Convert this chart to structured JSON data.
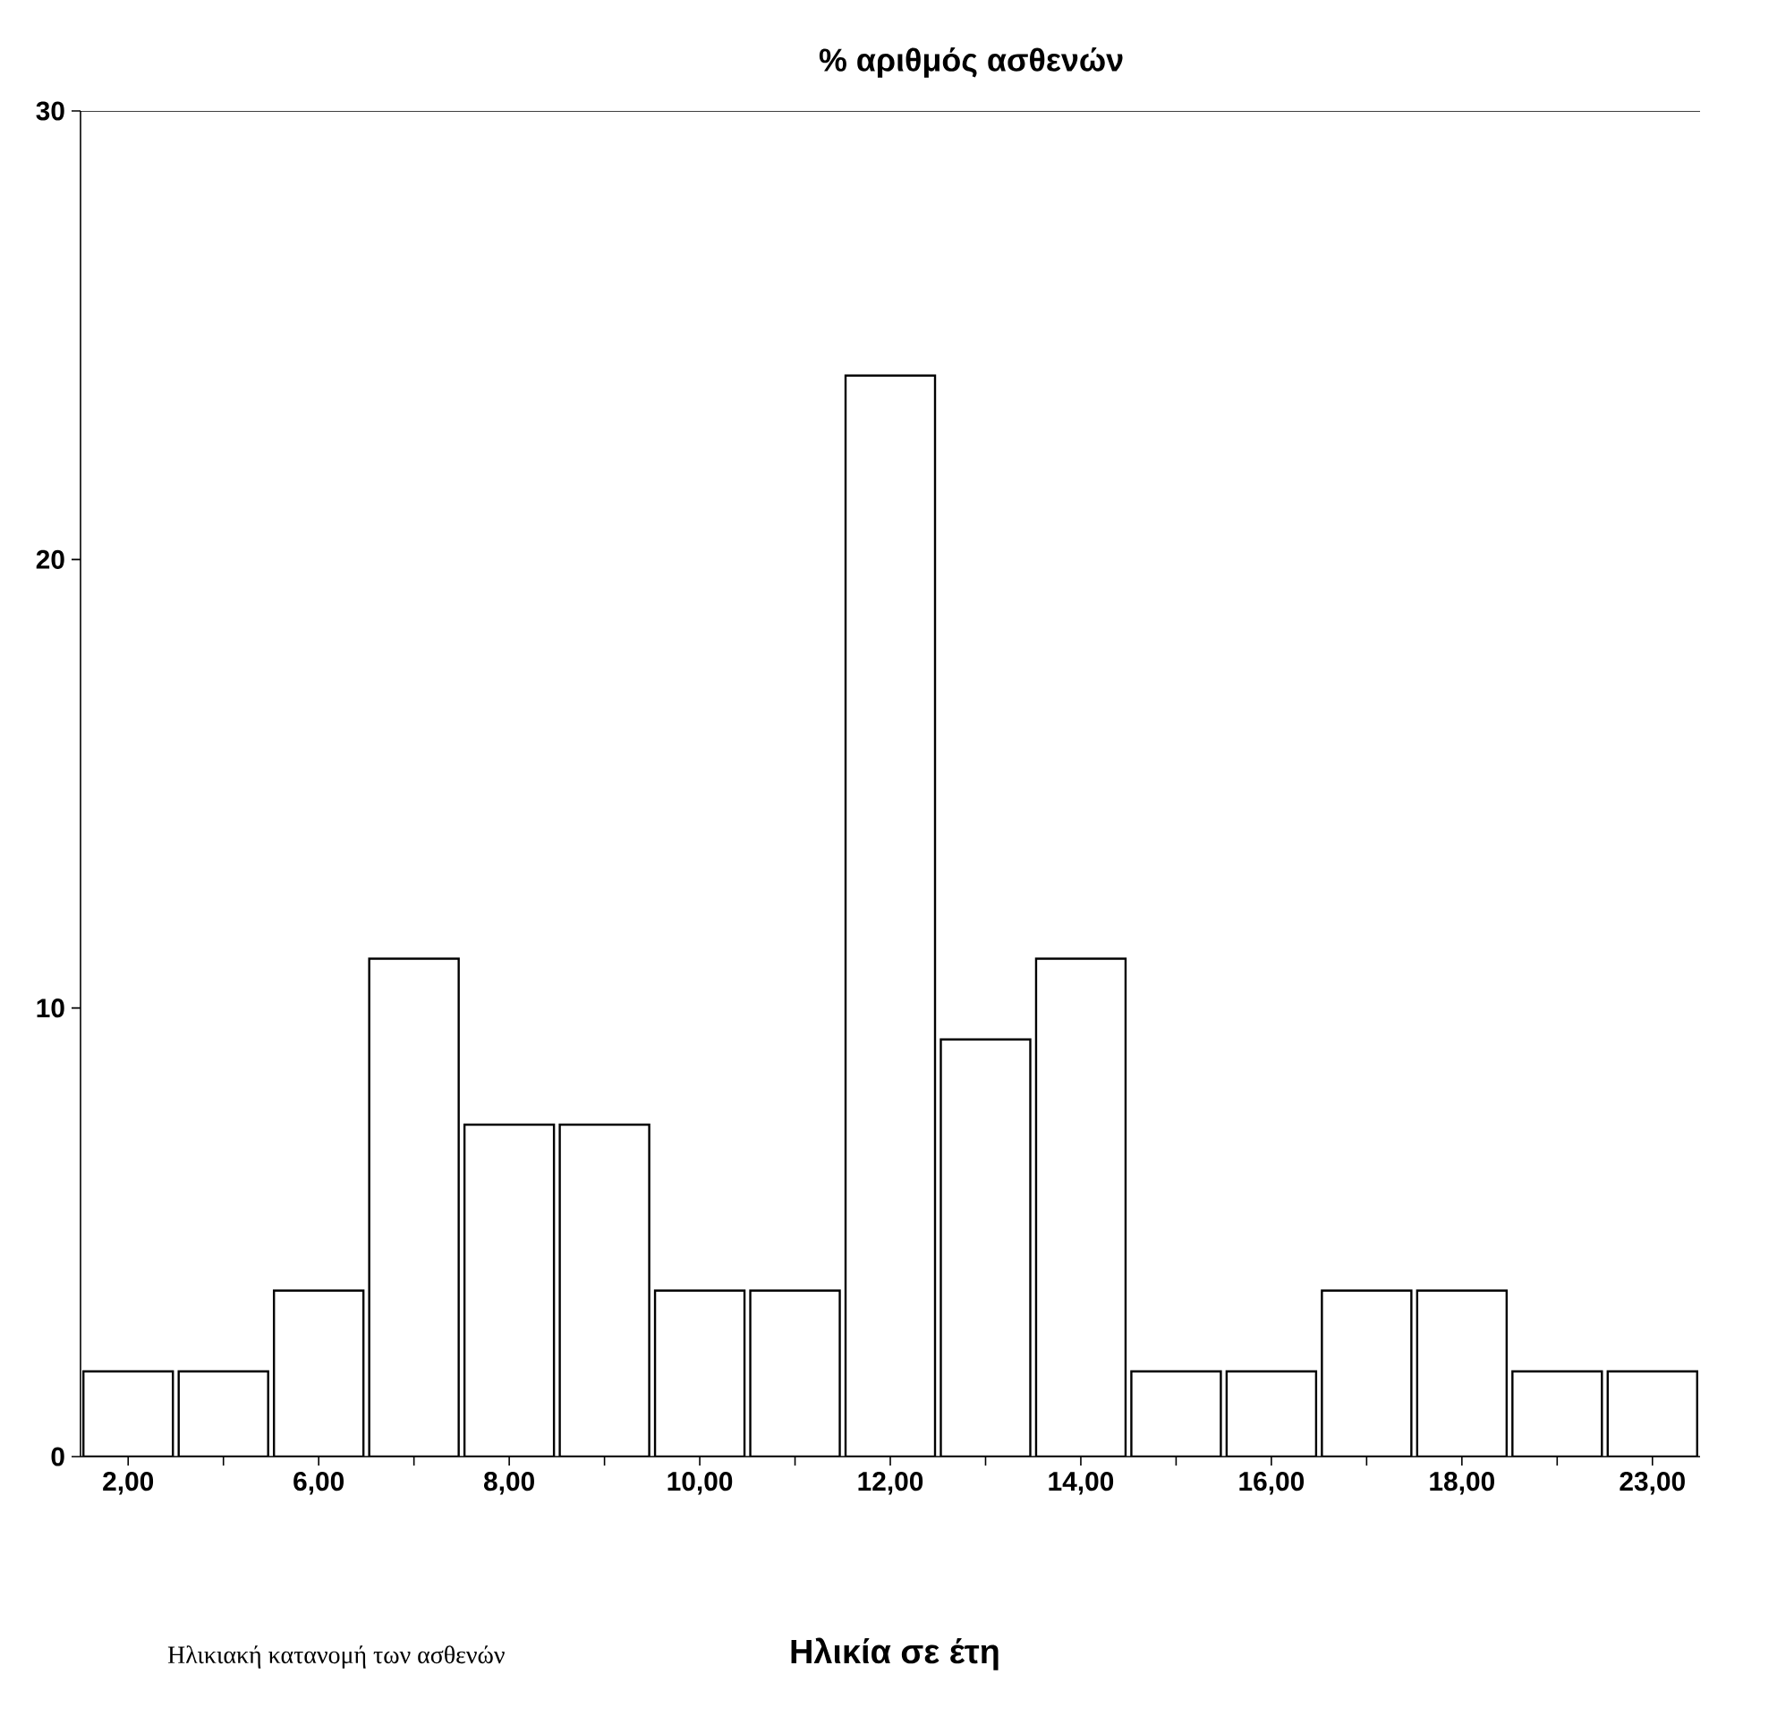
{
  "chart_data": {
    "type": "bar",
    "ylabel": "% αριθμός ασθενών",
    "xlabel": "Ηλικία σε έτη",
    "annotations": [
      "Ηλικιακή κατανομή των ασθενών"
    ],
    "categories": [
      "2,00",
      null,
      "6,00",
      null,
      "8,00",
      null,
      "10,00",
      null,
      "12,00",
      null,
      "14,00",
      null,
      "16,00",
      null,
      "18,00",
      null,
      "23,00"
    ],
    "values": [
      1.9,
      1.9,
      3.7,
      11.1,
      7.4,
      7.4,
      3.7,
      3.7,
      24.1,
      9.3,
      11.1,
      1.9,
      1.9,
      3.7,
      3.7,
      1.9,
      1.9
    ],
    "color": "#ffffff",
    "ylim": [
      0,
      30
    ],
    "yticks": [
      0,
      10,
      20,
      30
    ],
    "grid": false
  }
}
